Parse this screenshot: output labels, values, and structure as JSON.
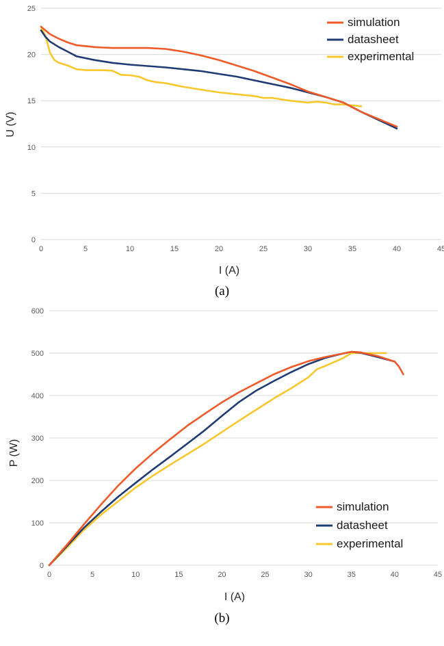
{
  "chart_data": [
    {
      "type": "line",
      "caption": "(a)",
      "xlabel": "I (A)",
      "ylabel": "U (V)",
      "xlim": [
        0,
        45
      ],
      "ylim": [
        0,
        25
      ],
      "xticks": [
        "0",
        "5",
        "10",
        "15",
        "20",
        "25",
        "30",
        "35",
        "40",
        "45"
      ],
      "yticks": [
        "0",
        "5",
        "10",
        "15",
        "20",
        "25"
      ],
      "grid": true,
      "legend_position": "top-right",
      "series": [
        {
          "name": "simulation",
          "color": "#ef5a28",
          "x": [
            0,
            0.5,
            1,
            2,
            3,
            4,
            5,
            6,
            7,
            8,
            9,
            10,
            12,
            14,
            16,
            18,
            20,
            22,
            24,
            26,
            28,
            30,
            32,
            34,
            35,
            36,
            38,
            40
          ],
          "y": [
            23.0,
            22.6,
            22.2,
            21.7,
            21.3,
            21.0,
            20.9,
            20.8,
            20.75,
            20.7,
            20.7,
            20.7,
            20.7,
            20.6,
            20.3,
            19.9,
            19.4,
            18.8,
            18.2,
            17.5,
            16.8,
            16.0,
            15.4,
            14.8,
            14.3,
            13.8,
            13.0,
            12.2
          ]
        },
        {
          "name": "datasheet",
          "color": "#1f3b73",
          "x": [
            0,
            0.5,
            1,
            2,
            3,
            4,
            5,
            6,
            8,
            10,
            12,
            14,
            16,
            18,
            20,
            22,
            24,
            26,
            28,
            30,
            32,
            34,
            35,
            36,
            38,
            40
          ],
          "y": [
            22.6,
            21.9,
            21.4,
            20.8,
            20.3,
            19.8,
            19.6,
            19.4,
            19.1,
            18.9,
            18.75,
            18.6,
            18.4,
            18.2,
            17.9,
            17.6,
            17.2,
            16.8,
            16.4,
            15.9,
            15.4,
            14.8,
            14.3,
            13.8,
            12.9,
            12.0
          ]
        },
        {
          "name": "experimental",
          "color": "#f7c72b",
          "x": [
            0,
            0.5,
            1,
            1.5,
            2,
            3,
            4,
            5,
            6,
            7,
            8,
            9,
            10,
            11,
            12,
            13,
            14,
            15,
            16,
            18,
            20,
            22,
            24,
            25,
            26,
            28,
            29,
            30,
            31,
            32,
            33,
            34,
            35,
            36
          ],
          "y": [
            23.0,
            22.0,
            20.2,
            19.4,
            19.1,
            18.8,
            18.4,
            18.3,
            18.3,
            18.3,
            18.25,
            17.8,
            17.75,
            17.6,
            17.2,
            17.0,
            16.9,
            16.7,
            16.5,
            16.2,
            15.9,
            15.7,
            15.5,
            15.3,
            15.3,
            15.0,
            14.9,
            14.8,
            14.9,
            14.8,
            14.6,
            14.6,
            14.5,
            14.4
          ]
        }
      ]
    },
    {
      "type": "line",
      "caption": "(b)",
      "xlabel": "I (A)",
      "ylabel": "P (W)",
      "xlim": [
        0,
        45
      ],
      "ylim": [
        0,
        600
      ],
      "xticks": [
        "0",
        "5",
        "10",
        "15",
        "20",
        "25",
        "30",
        "35",
        "40",
        "45"
      ],
      "yticks": [
        "0",
        "100",
        "200",
        "300",
        "400",
        "500",
        "600"
      ],
      "grid": true,
      "legend_position": "bottom-right",
      "series": [
        {
          "name": "simulation",
          "color": "#ef5a28",
          "x": [
            0,
            2,
            4,
            6,
            8,
            10,
            12,
            14,
            16,
            18,
            20,
            22,
            24,
            26,
            28,
            30,
            32,
            34,
            35,
            36,
            38,
            40,
            40.5,
            41
          ],
          "y": [
            0,
            47,
            96,
            143,
            188,
            228,
            264,
            297,
            329,
            357,
            384,
            408,
            429,
            450,
            467,
            481,
            491,
            499,
            503,
            502,
            493,
            480,
            468,
            450
          ]
        },
        {
          "name": "datasheet",
          "color": "#1f3b73",
          "x": [
            0,
            2,
            4,
            6,
            8,
            10,
            12,
            14,
            16,
            18,
            20,
            22,
            24,
            26,
            28,
            30,
            32,
            34,
            35,
            36,
            38,
            40
          ],
          "y": [
            0,
            44,
            88,
            126,
            162,
            194,
            226,
            256,
            287,
            318,
            352,
            385,
            412,
            434,
            455,
            474,
            489,
            499,
            503,
            501,
            491,
            480
          ]
        },
        {
          "name": "experimental",
          "color": "#f7c72b",
          "x": [
            0,
            2,
            4,
            6,
            8,
            10,
            12,
            14,
            16,
            18,
            20,
            22,
            24,
            26,
            28,
            30,
            31,
            32,
            34,
            35,
            36,
            37,
            38,
            39
          ],
          "y": [
            0,
            40,
            83,
            119,
            151,
            183,
            211,
            237,
            262,
            287,
            314,
            341,
            367,
            393,
            417,
            443,
            462,
            470,
            488,
            500,
            500,
            500,
            500,
            500
          ]
        }
      ]
    }
  ]
}
